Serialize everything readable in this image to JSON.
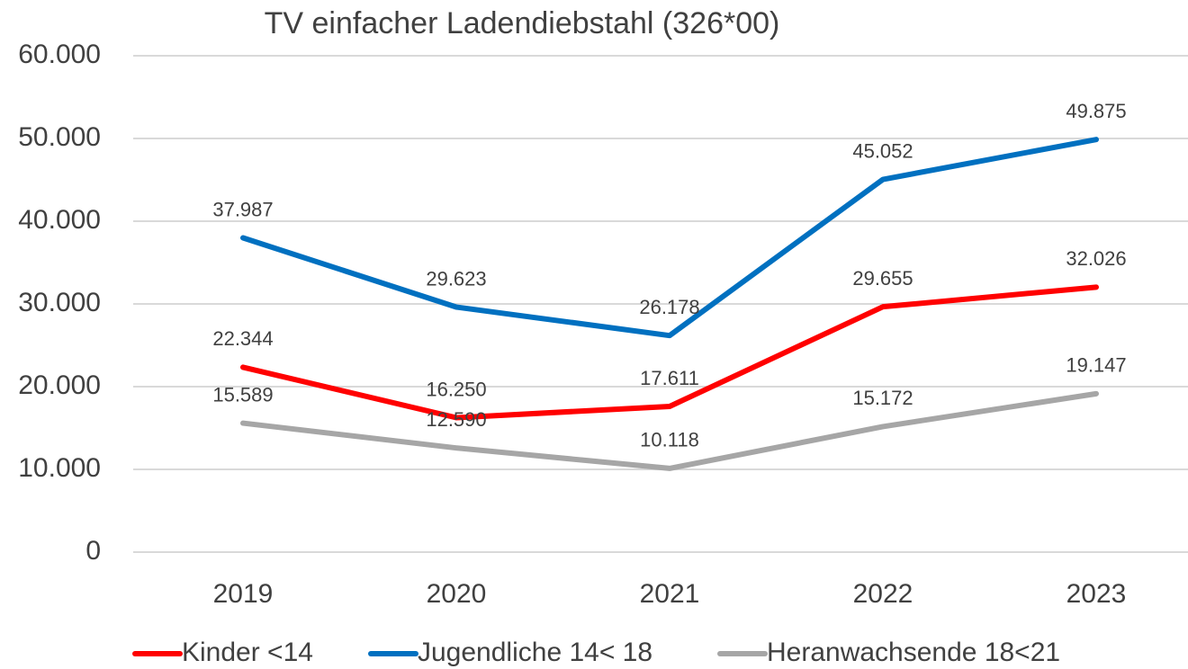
{
  "chart_data": {
    "type": "line",
    "title": "TV einfacher Ladendiebstahl (326*00)",
    "categories": [
      "2019",
      "2020",
      "2021",
      "2022",
      "2023"
    ],
    "series": [
      {
        "name": "Kinder <14",
        "color": "#ff0000",
        "values": [
          22344,
          16250,
          17611,
          29655,
          32026
        ],
        "value_labels": [
          "22.344",
          "16.250",
          "17.611",
          "29.655",
          "32.026"
        ]
      },
      {
        "name": "Jugendliche 14< 18",
        "color": "#0070c0",
        "values": [
          37987,
          29623,
          26178,
          45052,
          49875
        ],
        "value_labels": [
          "37.987",
          "29.623",
          "26.178",
          "45.052",
          "49.875"
        ]
      },
      {
        "name": "Heranwachsende 18<21",
        "color": "#a6a6a6",
        "values": [
          15589,
          12590,
          10118,
          15172,
          19147
        ],
        "value_labels": [
          "15.589",
          "12.590",
          "10.118",
          "15.172",
          "19.147"
        ]
      }
    ],
    "ylim": [
      0,
      60000
    ],
    "yticks": [
      0,
      {
        "value": 10000,
        "label": "10.000"
      },
      {
        "value": 20000,
        "label": "20.000"
      },
      {
        "value": 30000,
        "label": "30.000"
      },
      {
        "value": 40000,
        "label": "40.000"
      },
      {
        "value": 50000,
        "label": "50.000"
      },
      {
        "value": 60000,
        "label": "60.000"
      }
    ],
    "grid": true,
    "legend": "bottom"
  }
}
